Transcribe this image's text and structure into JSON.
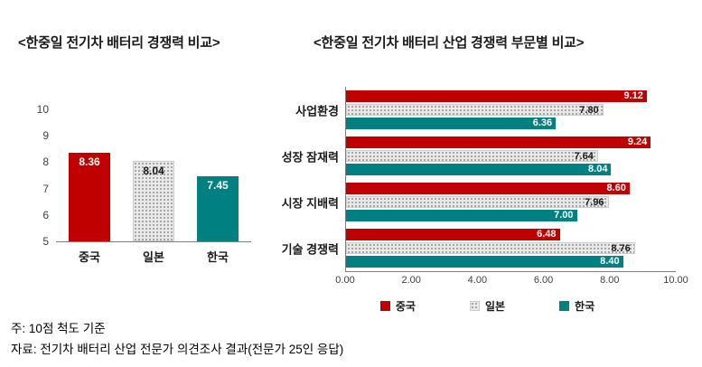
{
  "page": {
    "background": "#ffffff"
  },
  "colors": {
    "china_red": "#c00000",
    "japan_gray_fill": "#e9e9e9",
    "japan_gray_dot": "#8f8f8f",
    "korea_teal": "#008080",
    "axis_line": "#7f7f7f",
    "label_on_dark": "#ffffff",
    "label_on_light": "#1a1a1a"
  },
  "notes": {
    "line1": "주: 10점 척도 기준",
    "line2": "자료: 전기차 배터리 산업 전문가 의견조사 결과(전문가 25인 응답)"
  },
  "chart_data": [
    {
      "type": "bar",
      "orientation": "vertical",
      "title": "<한중일 전기차 배터리 경쟁력 비교>",
      "categories": [
        "중국",
        "일본",
        "한국"
      ],
      "values": [
        8.36,
        8.04,
        7.45
      ],
      "bar_styles": [
        {
          "color": "#c00000",
          "pattern": "solid",
          "label_color": "#ffffff"
        },
        {
          "color": "#e9e9e9",
          "pattern": "dots",
          "label_color": "#1a1a1a"
        },
        {
          "color": "#008080",
          "pattern": "solid",
          "label_color": "#ffffff"
        }
      ],
      "ylim": [
        5,
        10
      ],
      "yticks": [
        5,
        6,
        7,
        8,
        9,
        10
      ],
      "grid": false,
      "legend": false
    },
    {
      "type": "bar",
      "orientation": "horizontal",
      "title": "<한중일 전기차 배터리 산업 경쟁력 부문별 비교>",
      "categories": [
        "사업환경",
        "성장 잠재력",
        "시장 지배력",
        "기술 경쟁력"
      ],
      "series": [
        {
          "name": "중국",
          "values": [
            9.12,
            9.24,
            8.6,
            6.48
          ],
          "color": "#c00000",
          "pattern": "solid",
          "label_color": "#ffffff"
        },
        {
          "name": "일본",
          "values": [
            7.8,
            7.64,
            7.96,
            8.76
          ],
          "color": "#e9e9e9",
          "pattern": "dots",
          "label_color": "#1a1a1a"
        },
        {
          "name": "한국",
          "values": [
            6.36,
            8.04,
            7.0,
            8.4
          ],
          "color": "#008080",
          "pattern": "solid",
          "label_color": "#ffffff"
        }
      ],
      "xlim": [
        0,
        10
      ],
      "xticks": [
        0,
        2,
        4,
        6,
        8,
        10
      ],
      "tick_format": "0.00",
      "grid": false,
      "legend_position": "bottom"
    }
  ]
}
